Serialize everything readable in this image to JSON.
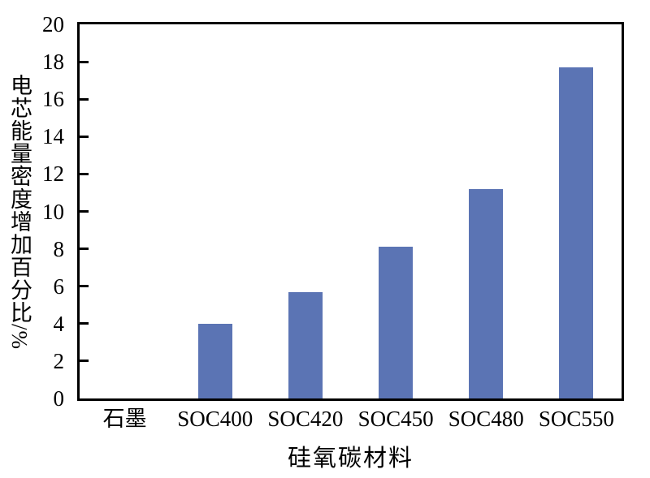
{
  "chart_data": {
    "type": "bar",
    "title": "",
    "categories": [
      "石墨",
      "SOC400",
      "SOC420",
      "SOC450",
      "SOC480",
      "SOC550"
    ],
    "values": [
      0,
      4.0,
      5.7,
      8.1,
      11.2,
      17.7
    ],
    "xlabel": "硅氧碳材料",
    "ylabel": "电芯能量密度增加百分比/%",
    "ylim": [
      0,
      20
    ],
    "yticks": [
      0,
      2,
      4,
      6,
      8,
      10,
      12,
      14,
      16,
      18,
      20
    ],
    "bar_color": "#5b74b4",
    "axis_color": "#000000",
    "grid": false,
    "legend_position": "none"
  }
}
